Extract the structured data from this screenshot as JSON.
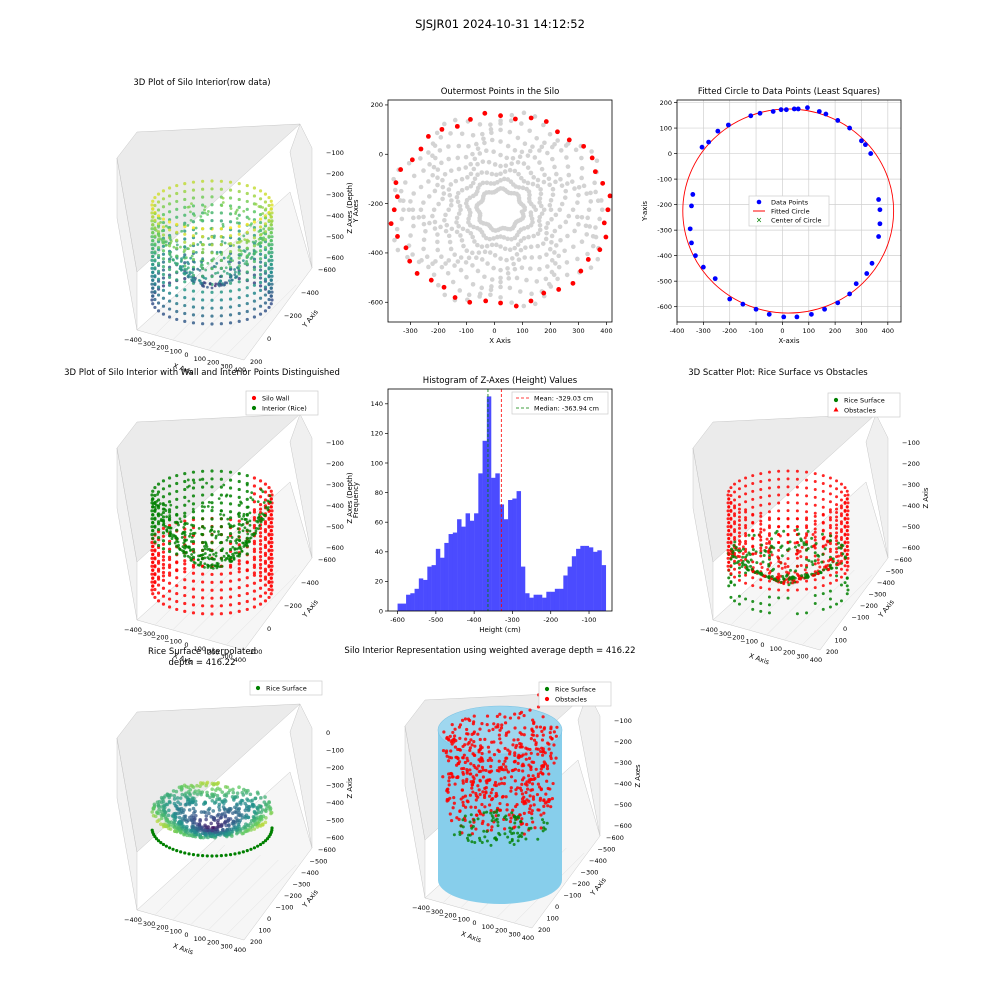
{
  "figure": {
    "suptitle": "SJSJR01 2024-10-31 14:12:52"
  },
  "colors": {
    "wall_red": "#ff0000",
    "rice_green": "#008000",
    "blue_points": "#0000ff",
    "grey_points": "#d3d3d3",
    "hist_blue": "#4b4bff",
    "cyl_blue": "#87ceeb",
    "viridis": [
      "#440154",
      "#3b528b",
      "#21918c",
      "#5ec962",
      "#fde725"
    ]
  },
  "chart_data": [
    {
      "id": "p3d_raw",
      "type": "scatter3d",
      "style": "viridis",
      "title": "3D Plot of Silo Interior(row data)",
      "xlabel": "X Axis",
      "ylabel": "Y Axis",
      "zlabel": "Z Axes (Depth)",
      "xticks": [
        "−400",
        "−300",
        "−200",
        "−100",
        "0",
        "100",
        "200",
        "300",
        "400"
      ],
      "yticks": [
        "−600",
        "−400",
        "−200",
        "0",
        "200"
      ],
      "zticks": [
        "−600",
        "−500",
        "−400",
        "−300",
        "−200",
        "−100"
      ]
    },
    {
      "id": "outer",
      "type": "scatter",
      "title": "Outermost Points in the Silo",
      "xlabel": "X Axis",
      "ylabel": "Y Axes",
      "xlim": [
        -380,
        420
      ],
      "ylim": [
        -680,
        220
      ],
      "xticks": [
        -300,
        -200,
        -100,
        0,
        100,
        200,
        300,
        400
      ],
      "yticks": [
        200,
        0,
        -200,
        -400,
        -600
      ],
      "center": [
        22,
        -225
      ],
      "radius_wall": 395,
      "wall_points_red_count": 44,
      "interior_points_grey": true
    },
    {
      "id": "fit",
      "type": "scatter",
      "title": "Fitted Circle to Data Points (Least Squares)",
      "xlabel": "X-axis",
      "ylabel": "Y-axis",
      "xlim": [
        -400,
        450
      ],
      "ylim": [
        -660,
        210
      ],
      "xticks": [
        -400,
        -300,
        -200,
        -100,
        0,
        100,
        200,
        300,
        400
      ],
      "yticks": [
        200,
        100,
        0,
        -100,
        -200,
        -300,
        -400,
        -500,
        -600
      ],
      "grid": true,
      "legend_position": "center",
      "legend": [
        "Data Points",
        "Fitted Circle",
        "Center of Circle"
      ],
      "fitted_circle": {
        "cx": 22,
        "cy": -225,
        "r": 400
      },
      "points": [
        [
          -305,
          25
        ],
        [
          -280,
          45
        ],
        [
          -245,
          88
        ],
        [
          -205,
          112
        ],
        [
          -120,
          148
        ],
        [
          -85,
          158
        ],
        [
          -35,
          165
        ],
        [
          -5,
          172
        ],
        [
          15,
          172
        ],
        [
          45,
          175
        ],
        [
          60,
          175
        ],
        [
          95,
          180
        ],
        [
          140,
          165
        ],
        [
          165,
          155
        ],
        [
          210,
          130
        ],
        [
          255,
          100
        ],
        [
          300,
          50
        ],
        [
          315,
          35
        ],
        [
          335,
          0
        ],
        [
          365,
          -180
        ],
        [
          370,
          -220
        ],
        [
          370,
          -275
        ],
        [
          365,
          -325
        ],
        [
          340,
          -430
        ],
        [
          320,
          -470
        ],
        [
          280,
          -510
        ],
        [
          255,
          -550
        ],
        [
          210,
          -585
        ],
        [
          160,
          -610
        ],
        [
          110,
          -630
        ],
        [
          55,
          -640
        ],
        [
          5,
          -640
        ],
        [
          -50,
          -630
        ],
        [
          -100,
          -610
        ],
        [
          -150,
          -590
        ],
        [
          -200,
          -570
        ],
        [
          -255,
          -490
        ],
        [
          -300,
          -445
        ],
        [
          -330,
          -400
        ],
        [
          -345,
          -350
        ],
        [
          -350,
          -295
        ],
        [
          -345,
          -205
        ],
        [
          -340,
          -160
        ]
      ]
    },
    {
      "id": "p3d_wall",
      "type": "scatter3d",
      "style": "wall",
      "title": "3D Plot of Silo Interior with Wall and Interior Points Distinguished",
      "xlabel": "X Axis",
      "ylabel": "Y Axis",
      "zlabel": "Z Axes (Depth)",
      "legend": [
        "Silo Wall",
        "Interior (Rice)"
      ],
      "xticks": [
        "−400",
        "−300",
        "−200",
        "−100",
        "0",
        "100",
        "200",
        "300",
        "400"
      ],
      "yticks": [
        "−600",
        "−400",
        "−200",
        "0",
        "200"
      ],
      "zticks": [
        "−600",
        "−500",
        "−400",
        "−300",
        "−200",
        "−100"
      ]
    },
    {
      "id": "hist",
      "type": "bar",
      "title": "Histogram of Z-Axes (Height) Values",
      "xlabel": "Height (cm)",
      "ylabel": "Frequency",
      "xlim": [
        -625,
        -40
      ],
      "ylim": [
        0,
        150
      ],
      "xticks": [
        -600,
        -500,
        -400,
        -300,
        -200,
        -100
      ],
      "yticks": [
        0,
        20,
        40,
        60,
        80,
        100,
        120,
        140
      ],
      "bin_start": -600,
      "bin_width": 11.1,
      "values": [
        5,
        5,
        11,
        12,
        15,
        22,
        21,
        30,
        31,
        42,
        36,
        46,
        52,
        53,
        62,
        57,
        66,
        61,
        66,
        93,
        115,
        145,
        90,
        93,
        72,
        62,
        75,
        76,
        81,
        30,
        12,
        9,
        11,
        11,
        9,
        13,
        13,
        15,
        15,
        24,
        30,
        37,
        42,
        44,
        44,
        43,
        40,
        41,
        31
      ],
      "mean": -329.03,
      "median": -363.94,
      "legend": [
        "Mean: -329.03 cm",
        "Median: -363.94 cm"
      ]
    },
    {
      "id": "p3d_obst",
      "type": "scatter3d",
      "style": "obstacles",
      "title": "3D Scatter Plot: Rice Surface vs Obstacles",
      "xlabel": "X Axis",
      "ylabel": "Y Axis",
      "zlabel": "Z Axis",
      "legend": [
        "Rice Surface",
        "Obstacles"
      ],
      "xticks": [
        "−400",
        "−300",
        "−200",
        "−100",
        "0",
        "100",
        "200",
        "300",
        "400"
      ],
      "yticks": [
        "−600",
        "−500",
        "−400",
        "−300",
        "−200",
        "−100",
        "0",
        "100",
        "200"
      ],
      "zticks": [
        "−600",
        "−500",
        "−400",
        "−300",
        "−200",
        "−100"
      ]
    },
    {
      "id": "p3d_interp",
      "type": "surface3d",
      "style": "interp",
      "title": "Rice Surface Interpolated",
      "subtitle": "depth = 416.22",
      "xlabel": "X Axis",
      "ylabel": "Y Axis",
      "zlabel": "Z Axis",
      "legend": [
        "Rice Surface"
      ],
      "xticks": [
        "−400",
        "−300",
        "−200",
        "−100",
        "0",
        "100",
        "200",
        "300",
        "400"
      ],
      "yticks": [
        "−600",
        "−500",
        "−400",
        "−300",
        "−200",
        "−100",
        "0",
        "100",
        "200"
      ],
      "zticks": [
        "−600",
        "−500",
        "−400",
        "−300",
        "−200",
        "−100",
        "0"
      ]
    },
    {
      "id": "p3d_cyl",
      "type": "scatter3d",
      "style": "cylinder",
      "title": "Silo Interior Representation using weighted average depth = 416.22",
      "xlabel": "X Axis",
      "ylabel": "Y Axis",
      "zlabel": "Z Axes",
      "legend": [
        "Rice Surface",
        "Obstacles"
      ],
      "xticks": [
        "−400",
        "−300",
        "−200",
        "−100",
        "0",
        "100",
        "200",
        "300",
        "400"
      ],
      "yticks": [
        "−600",
        "−500",
        "−400",
        "−300",
        "−200",
        "−100",
        "0",
        "100",
        "200"
      ],
      "zticks": [
        "−600",
        "−500",
        "−400",
        "−300",
        "−200",
        "−100"
      ]
    }
  ]
}
